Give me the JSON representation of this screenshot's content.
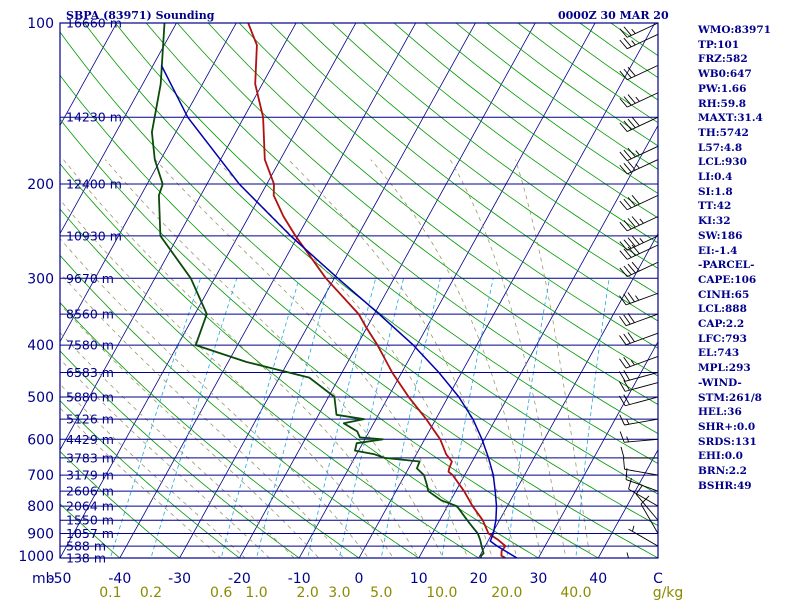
{
  "header": {
    "station": "SBPA (83971) Sounding",
    "valid_time": "0000Z 30 MAR 20"
  },
  "indices": [
    "WMO:83971",
    "TP:101",
    "FRZ:582",
    "WB0:647",
    "PW:1.66",
    "RH:59.8",
    "MAXT:31.4",
    "TH:5742",
    "L57:4.8",
    "LCL:930",
    "LI:0.4",
    "SI:1.8",
    "TT:42",
    "KI:32",
    "SW:186",
    "EI:-1.4",
    "-PARCEL-",
    "CAPE:106",
    "CINH:65",
    "LCL:888",
    "CAP:2.2",
    "LFC:793",
    "EL:743",
    "MPL:293",
    "-WIND-",
    "STM:261/8",
    "HEL:36",
    "SHR+:0.0",
    "SRDS:131",
    "EHI:0.0",
    "BRN:2.2",
    "BSHR:49"
  ],
  "colors": {
    "frame": "#00008b",
    "isobar": "#00008b",
    "isotherm": "#00008b",
    "dry_adiabat": "#009900",
    "moist_adiabat": "#9a9a6a",
    "mixing_ratio": "#22aadd",
    "temperature": "#b01010",
    "dewpoint": "#0a4a0a",
    "parcel": "#0000b0",
    "wind_barb": "#000000",
    "mixing_ratio_labels": "#8b8b00",
    "background": "#ffffff"
  },
  "chart_data": {
    "type": "skew-t log-p",
    "title": "SBPA (83971) Sounding",
    "xlabel": "C",
    "ylabel": "mb",
    "mixing_ratio_unit": "g/kg",
    "pressure_range_mb": [
      1000,
      100
    ],
    "temperature_range_c": [
      -50,
      50
    ],
    "pressure_ticks": [
      100,
      200,
      300,
      400,
      500,
      600,
      700,
      800,
      900,
      1000
    ],
    "temperature_ticks": [
      -50,
      -40,
      -30,
      -20,
      -10,
      0,
      10,
      20,
      30,
      40
    ],
    "height_labels": [
      {
        "p": 100,
        "label": "16660 m"
      },
      {
        "p": 150,
        "label": "14230 m"
      },
      {
        "p": 200,
        "label": "12400 m"
      },
      {
        "p": 250,
        "label": "10930 m"
      },
      {
        "p": 300,
        "label": "9670 m"
      },
      {
        "p": 350,
        "label": "8560 m"
      },
      {
        "p": 400,
        "label": "7580 m"
      },
      {
        "p": 450,
        "label": "6583 m"
      },
      {
        "p": 500,
        "label": "5880 m"
      },
      {
        "p": 550,
        "label": "5126 m"
      },
      {
        "p": 600,
        "label": "4429 m"
      },
      {
        "p": 650,
        "label": "3783 m"
      },
      {
        "p": 700,
        "label": "3179 m"
      },
      {
        "p": 750,
        "label": "2606 m"
      },
      {
        "p": 800,
        "label": "2064 m"
      },
      {
        "p": 850,
        "label": "1550 m"
      },
      {
        "p": 900,
        "label": "1057 m"
      },
      {
        "p": 950,
        "label": "588 m"
      },
      {
        "p": 1000,
        "label": "138 m"
      }
    ],
    "mixing_ratio_labels": [
      {
        "w": 0.1,
        "label": "0.1"
      },
      {
        "w": 0.2,
        "label": "0.2"
      },
      {
        "w": 0.6,
        "label": "0.6"
      },
      {
        "w": 1.0,
        "label": "1.0"
      },
      {
        "w": 2.0,
        "label": "2.0"
      },
      {
        "w": 3.0,
        "label": "3.0"
      },
      {
        "w": 5.0,
        "label": "5.0"
      },
      {
        "w": 10.0,
        "label": "10.0"
      },
      {
        "w": 20.0,
        "label": "20.0"
      },
      {
        "w": 40.0,
        "label": "40.0"
      }
    ],
    "series": [
      {
        "name": "Temperature",
        "points": [
          {
            "p": 1000,
            "t": 24.5
          },
          {
            "p": 990,
            "t": 23.6
          },
          {
            "p": 970,
            "t": 23.2
          },
          {
            "p": 950,
            "t": 23.4
          },
          {
            "p": 925,
            "t": 21.6
          },
          {
            "p": 900,
            "t": 19.4
          },
          {
            "p": 850,
            "t": 17.2
          },
          {
            "p": 800,
            "t": 14.2
          },
          {
            "p": 750,
            "t": 11.4
          },
          {
            "p": 700,
            "t": 8.0
          },
          {
            "p": 690,
            "t": 7.0
          },
          {
            "p": 680,
            "t": 6.8
          },
          {
            "p": 660,
            "t": 6.6
          },
          {
            "p": 640,
            "t": 5.0
          },
          {
            "p": 600,
            "t": 2.6
          },
          {
            "p": 550,
            "t": -1.6
          },
          {
            "p": 500,
            "t": -6.6
          },
          {
            "p": 450,
            "t": -11.6
          },
          {
            "p": 400,
            "t": -16.6
          },
          {
            "p": 370,
            "t": -20.2
          },
          {
            "p": 350,
            "t": -22.6
          },
          {
            "p": 300,
            "t": -31.4
          },
          {
            "p": 250,
            "t": -40.4
          },
          {
            "p": 230,
            "t": -44.2
          },
          {
            "p": 210,
            "t": -47.8
          },
          {
            "p": 200,
            "t": -48.8
          },
          {
            "p": 180,
            "t": -52.6
          },
          {
            "p": 150,
            "t": -56.8
          },
          {
            "p": 130,
            "t": -61.2
          },
          {
            "p": 110,
            "t": -64.5
          },
          {
            "p": 100,
            "t": -68.0
          }
        ]
      },
      {
        "name": "Dewpoint",
        "points": [
          {
            "p": 1000,
            "t": 20.4
          },
          {
            "p": 990,
            "t": 20.2
          },
          {
            "p": 980,
            "t": 20.4
          },
          {
            "p": 950,
            "t": 19.4
          },
          {
            "p": 925,
            "t": 18.6
          },
          {
            "p": 900,
            "t": 17.6
          },
          {
            "p": 870,
            "t": 15.8
          },
          {
            "p": 850,
            "t": 14.6
          },
          {
            "p": 800,
            "t": 11.6
          },
          {
            "p": 780,
            "t": 8.4
          },
          {
            "p": 750,
            "t": 5.4
          },
          {
            "p": 730,
            "t": 4.6
          },
          {
            "p": 700,
            "t": 3.2
          },
          {
            "p": 680,
            "t": 1.4
          },
          {
            "p": 660,
            "t": 1.2
          },
          {
            "p": 650,
            "t": -5.0
          },
          {
            "p": 640,
            "t": -7.0
          },
          {
            "p": 630,
            "t": -10.6
          },
          {
            "p": 610,
            "t": -11.0
          },
          {
            "p": 600,
            "t": -7.0
          },
          {
            "p": 595,
            "t": -11.0
          },
          {
            "p": 580,
            "t": -12.0
          },
          {
            "p": 560,
            "t": -15.0
          },
          {
            "p": 550,
            "t": -12.0
          },
          {
            "p": 540,
            "t": -17.0
          },
          {
            "p": 500,
            "t": -19.0
          },
          {
            "p": 460,
            "t": -25.0
          },
          {
            "p": 430,
            "t": -37.0
          },
          {
            "p": 400,
            "t": -47.0
          },
          {
            "p": 350,
            "t": -48.0
          },
          {
            "p": 300,
            "t": -54.0
          },
          {
            "p": 250,
            "t": -63.0
          },
          {
            "p": 210,
            "t": -67.0
          },
          {
            "p": 200,
            "t": -67.4
          },
          {
            "p": 180,
            "t": -71.0
          },
          {
            "p": 160,
            "t": -74.0
          },
          {
            "p": 130,
            "t": -77.0
          },
          {
            "p": 100,
            "t": -82.0
          }
        ]
      },
      {
        "name": "Parcel",
        "points": [
          {
            "p": 1000,
            "t": 26.4
          },
          {
            "p": 950,
            "t": 22.0
          },
          {
            "p": 930,
            "t": 20.4
          },
          {
            "p": 900,
            "t": 20.2
          },
          {
            "p": 850,
            "t": 19.4
          },
          {
            "p": 800,
            "t": 18.2
          },
          {
            "p": 750,
            "t": 16.6
          },
          {
            "p": 700,
            "t": 14.8
          },
          {
            "p": 650,
            "t": 12.4
          },
          {
            "p": 600,
            "t": 9.6
          },
          {
            "p": 550,
            "t": 6.2
          },
          {
            "p": 500,
            "t": 1.8
          },
          {
            "p": 450,
            "t": -3.8
          },
          {
            "p": 400,
            "t": -10.6
          },
          {
            "p": 350,
            "t": -19.2
          },
          {
            "p": 300,
            "t": -29.4
          },
          {
            "p": 250,
            "t": -41.2
          },
          {
            "p": 200,
            "t": -54.6
          },
          {
            "p": 150,
            "t": -69.4
          },
          {
            "p": 120,
            "t": -78.6
          }
        ]
      }
    ],
    "winds": [
      {
        "p": 1000,
        "dir": 270,
        "spd": 5
      },
      {
        "p": 950,
        "dir": 300,
        "spd": 5
      },
      {
        "p": 900,
        "dir": 330,
        "spd": 10
      },
      {
        "p": 850,
        "dir": 320,
        "spd": 10
      },
      {
        "p": 800,
        "dir": 300,
        "spd": 10
      },
      {
        "p": 750,
        "dir": 290,
        "spd": 10
      },
      {
        "p": 700,
        "dir": 280,
        "spd": 10
      },
      {
        "p": 650,
        "dir": 270,
        "spd": 10
      },
      {
        "p": 600,
        "dir": 265,
        "spd": 15
      },
      {
        "p": 550,
        "dir": 260,
        "spd": 15
      },
      {
        "p": 500,
        "dir": 255,
        "spd": 20
      },
      {
        "p": 470,
        "dir": 255,
        "spd": 20
      },
      {
        "p": 450,
        "dir": 255,
        "spd": 20
      },
      {
        "p": 420,
        "dir": 250,
        "spd": 25
      },
      {
        "p": 380,
        "dir": 250,
        "spd": 30
      },
      {
        "p": 350,
        "dir": 250,
        "spd": 30
      },
      {
        "p": 320,
        "dir": 250,
        "spd": 35
      },
      {
        "p": 280,
        "dir": 245,
        "spd": 40
      },
      {
        "p": 260,
        "dir": 245,
        "spd": 40
      },
      {
        "p": 250,
        "dir": 245,
        "spd": 45
      },
      {
        "p": 230,
        "dir": 245,
        "spd": 45
      },
      {
        "p": 210,
        "dir": 245,
        "spd": 40
      },
      {
        "p": 180,
        "dir": 245,
        "spd": 35
      },
      {
        "p": 170,
        "dir": 245,
        "spd": 35
      },
      {
        "p": 150,
        "dir": 245,
        "spd": 40
      },
      {
        "p": 135,
        "dir": 245,
        "spd": 35
      },
      {
        "p": 120,
        "dir": 245,
        "spd": 30
      },
      {
        "p": 105,
        "dir": 245,
        "spd": 25
      },
      {
        "p": 100,
        "dir": 245,
        "spd": 25
      }
    ]
  }
}
